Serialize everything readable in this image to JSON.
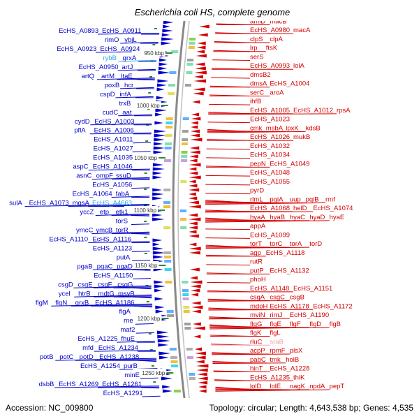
{
  "title": "Escherichia coli HS, complete genome",
  "footer": {
    "accession": "Accession: NC_009800",
    "summary": "Topology: circular; Length: 4,643,538 bp; Genes: 4,535"
  },
  "colors": {
    "forward_strand": "#0000c8",
    "reverse_strand": "#d40000",
    "rna_gene": "#2ab0e0",
    "pseudo_gene": "#f2a0b0",
    "kbp_tick": "#2e8b2e",
    "backbone": "#888888"
  },
  "scale_marks": [
    "950 kbp",
    "1000 kbp",
    "1050 kbp",
    "1100 kbp",
    "1150 kbp",
    "1200 kbp",
    "1250 kbp"
  ],
  "left_labels": [
    [
      "EcHS_A0893",
      "EcHS_A0911"
    ],
    [
      "rimO",
      "ybjL"
    ],
    [
      "EcHS_A0923",
      "EcHS_A0924"
    ],
    [
      "rybB",
      "grxA"
    ],
    [
      "EcHS_A0950",
      "artJ"
    ],
    [
      "artQ",
      "artM",
      "ltaE"
    ],
    [
      "poxB",
      "hcr"
    ],
    [
      "cspD",
      "infA"
    ],
    [
      "trxB"
    ],
    [
      "cudC",
      "aat"
    ],
    [
      "cydD",
      "EcHS_A1003"
    ],
    [
      "pflA",
      "EcHS_A1006"
    ],
    [
      "EcHS_A1011"
    ],
    [
      "EcHS_A1027"
    ],
    [
      "EcHS_A1035"
    ],
    [
      "aspC",
      "EcHS_A1046"
    ],
    [
      "asnC",
      "ompF",
      "ssuD"
    ],
    [
      "EcHS_A1056"
    ],
    [
      "EcHS_A1064",
      "fabA"
    ],
    [
      "sulA",
      "EcHS_A1073",
      "mgsA",
      "EcHS_A4663"
    ],
    [
      "yccZ",
      "etp",
      "etk1"
    ],
    [
      "torS"
    ],
    [
      "ymcC",
      "ymcB",
      "torR"
    ],
    [
      "EcHS_A1110",
      "EcHS_A1116"
    ],
    [
      "EcHS_A1123"
    ],
    [
      "putA"
    ],
    [
      "pgaB",
      "pgaC",
      "pgaD"
    ],
    [
      "EcHS_A1150"
    ],
    [
      "csgD",
      "csgE",
      "csgF",
      "csgG"
    ],
    [
      "ycel",
      "htrB",
      "mdtG",
      "msyB"
    ],
    [
      "flgM",
      "flgN",
      "grxB",
      "EcHS_A1186"
    ],
    [
      "flgA"
    ],
    [
      "rne"
    ],
    [
      "maf2"
    ],
    [
      "EcHS_A1225",
      "fhuE"
    ],
    [
      "mfd",
      "EcHS_A1234"
    ],
    [
      "potB",
      "potC",
      "potD",
      "EcHS_A1238"
    ],
    [
      "EcHS_A1254",
      "purB"
    ],
    [
      "minE"
    ],
    [
      "dsbB",
      "EcHS_A1269",
      "EcHS_A1261"
    ],
    [
      "EcHS_A1291"
    ]
  ],
  "right_labels": [
    [
      "rimK",
      "potH"
    ],
    [
      "rumB",
      "EcHS_A0970"
    ],
    [
      "amiD",
      "macB"
    ],
    [
      "EcHS_A0980",
      "macA"
    ],
    [
      "clpS",
      "clpA"
    ],
    [
      "lrp",
      "ftsK"
    ],
    [
      "serS"
    ],
    [
      "EcHS_A0993",
      "lolA"
    ],
    [
      "dmsB2"
    ],
    [
      "dmsA",
      "EcHS_A1004"
    ],
    [
      "serC",
      "aroA"
    ],
    [
      "ihfB"
    ],
    [
      "EcHS_A1005",
      "EcHS_A1012",
      "rpsA"
    ],
    [
      "EcHS_A1023"
    ],
    [
      "cmk",
      "msbA",
      "lpxK",
      "kdsB"
    ],
    [
      "EcHS_A1026",
      "mukB"
    ],
    [
      "EcHS_A1032"
    ],
    [
      "EcHS_A1034"
    ],
    [
      "pepN",
      "EcHS_A1049"
    ],
    [
      "EcHS_A1048"
    ],
    [
      "EcHS_A1055"
    ],
    [
      "pyrD"
    ],
    [
      "rlmL",
      "pqiA",
      "uup",
      "pqiB",
      "rmf"
    ],
    [
      "EcHS_A1068",
      "helD",
      "EcHS_A1074"
    ],
    [
      "hyaA",
      "hyaB",
      "hyaC",
      "hyaD",
      "hyaE"
    ],
    [
      "appA"
    ],
    [
      "EcHS_A1099"
    ],
    [
      "torT",
      "torC",
      "torA",
      "torD"
    ],
    [
      "agp",
      "EcHS_A1118"
    ],
    [
      "rutR"
    ],
    [
      "putP",
      "EcHS_A1132"
    ],
    [
      "phoH"
    ],
    [
      "EcHS_A1148",
      "EcHS_A1151"
    ],
    [
      "csgA",
      "csgC",
      "csgB"
    ],
    [
      "mdoH",
      "EcHS_A1178",
      "EcHS_A1172"
    ],
    [
      "mviN",
      "rimJ",
      "EcHS_A1190"
    ],
    [
      "flgG",
      "flgE",
      "flgF",
      "flgD",
      "flgB"
    ],
    [
      "flgK",
      "flgL"
    ],
    [
      "rluC",
      "sraB"
    ],
    [
      "acpP",
      "rpmF",
      "plsX"
    ],
    [
      "pabC",
      "tmk",
      "holB"
    ],
    [
      "hinT",
      "EcHS_A1228"
    ],
    [
      "EcHS_A1235",
      "thiK"
    ],
    [
      "lolD",
      "lolE",
      "nagK",
      "npdA",
      "pepT"
    ]
  ]
}
